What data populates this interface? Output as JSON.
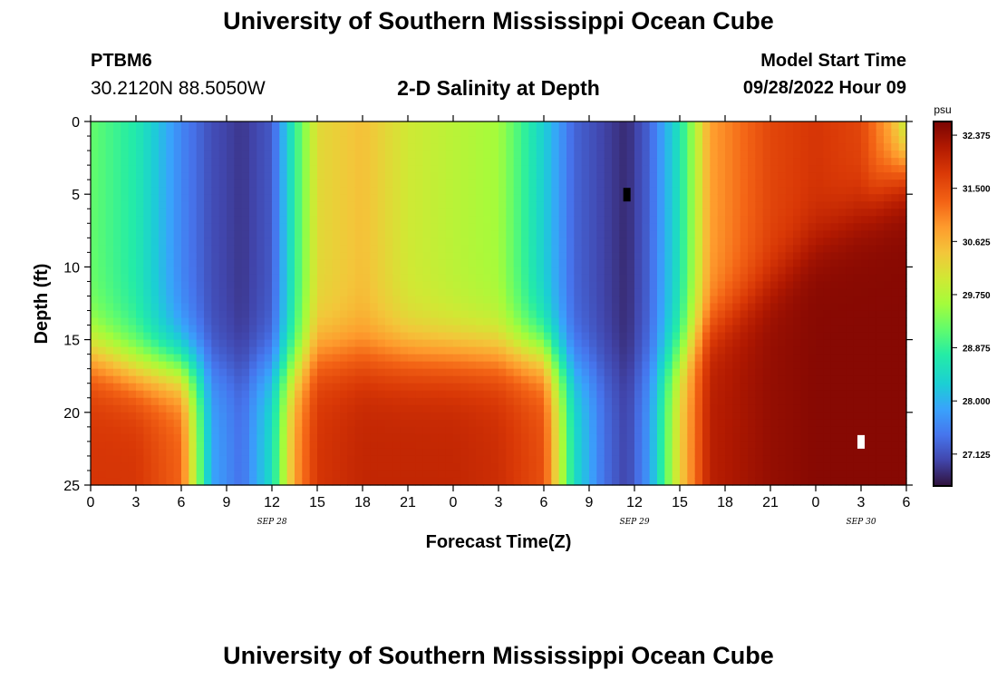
{
  "header": {
    "title": "University of Southern Mississippi Ocean Cube",
    "station": "PTBM6",
    "coords": "30.2120N  88.5050W",
    "subtitle": "2-D Salinity at Depth",
    "model_start_label": "Model Start Time",
    "model_start_time": "09/28/2022 Hour 09"
  },
  "footer": {
    "title": "University of Southern Mississippi Ocean Cube"
  },
  "chart_data": {
    "type": "heatmap",
    "title": "2-D Salinity at Depth",
    "xlabel": "Forecast Time(Z)",
    "ylabel": "Depth (ft)",
    "x_range_hours": [
      0,
      54
    ],
    "y_range_ft": [
      0,
      25
    ],
    "x_tick_labels": [
      "0",
      "3",
      "6",
      "9",
      "12",
      "15",
      "18",
      "21",
      "0",
      "3",
      "6",
      "9",
      "12",
      "15",
      "18",
      "21",
      "0",
      "3",
      "6"
    ],
    "y_tick_labels": [
      "0",
      "5",
      "10",
      "15",
      "20",
      "25"
    ],
    "date_labels": [
      {
        "text": "SEP 28",
        "hour": 12
      },
      {
        "text": "SEP 29",
        "hour": 36
      },
      {
        "text": "SEP 30",
        "hour": 51
      }
    ],
    "colorbar": {
      "unit": "psu",
      "min": 26.6,
      "max": 32.6,
      "tick_labels": [
        "32.375",
        "31.500",
        "30.625",
        "29.750",
        "28.875",
        "28.000",
        "27.125"
      ],
      "tick_values": [
        32.375,
        31.5,
        30.625,
        29.75,
        28.875,
        28.0,
        27.125
      ]
    },
    "markers": [
      {
        "name": "black-marker",
        "hour": 35.5,
        "depth": 5,
        "color": "#000000"
      },
      {
        "name": "white-marker",
        "hour": 51,
        "depth": 22,
        "color": "#ffffff"
      }
    ],
    "salinity_profile": {
      "time_hours": [
        0,
        3,
        6,
        8,
        10,
        12,
        13.5,
        15,
        18,
        21,
        24,
        27,
        30,
        32,
        34,
        35.5,
        37,
        39,
        41,
        45,
        48,
        51,
        53,
        54
      ],
      "surface_psu": [
        29.2,
        28.7,
        27.6,
        27.1,
        26.9,
        27.2,
        28.8,
        30.2,
        30.5,
        30.0,
        29.8,
        29.6,
        28.3,
        27.3,
        27.0,
        26.8,
        27.3,
        28.6,
        30.8,
        31.6,
        31.8,
        31.6,
        30.6,
        29.6
      ],
      "bottom_psu": [
        31.8,
        31.8,
        31.3,
        27.9,
        27.4,
        28.5,
        30.8,
        31.8,
        32.0,
        32.0,
        32.0,
        31.9,
        31.5,
        28.5,
        27.4,
        27.0,
        27.8,
        30.3,
        32.1,
        32.4,
        32.5,
        32.5,
        32.5,
        32.5
      ],
      "halocline_ft": [
        16,
        17,
        17,
        17,
        17,
        17,
        17,
        16,
        16,
        16,
        16,
        16,
        16,
        17,
        17,
        17,
        17,
        16,
        14,
        11,
        8,
        6,
        4,
        3
      ]
    }
  }
}
